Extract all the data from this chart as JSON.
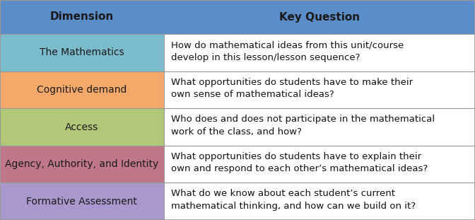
{
  "header": {
    "col1": "Dimension",
    "col2": "Key Question",
    "bg_color": "#5B8DC8",
    "text_color": "#1a1a1a"
  },
  "rows": [
    {
      "dimension": "The Mathematics",
      "question": "How do mathematical ideas from this unit/course\ndevelop in this lesson/lesson sequence?",
      "dim_color": "#7BBCCC"
    },
    {
      "dimension": "Cognitive demand",
      "question": "What opportunities do students have to make their\nown sense of mathematical ideas?",
      "dim_color": "#F4A96A"
    },
    {
      "dimension": "Access",
      "question": "Who does and does not participate in the mathematical\nwork of the class, and how?",
      "dim_color": "#B0C878"
    },
    {
      "dimension": "Agency, Authority, and Identity",
      "question": "What opportunities do students have to explain their\nown and respond to each other’s mathematical ideas?",
      "dim_color": "#C07888"
    },
    {
      "dimension": "Formative Assessment",
      "question": "What do we know about each student’s current\nmathematical thinking, and how can we build on it?",
      "dim_color": "#A898CC"
    }
  ],
  "col_split": 0.345,
  "border_color": "#999999",
  "question_text_color": "#111111",
  "question_font_size": 9.5,
  "dimension_font_size": 10,
  "header_font_size": 11
}
